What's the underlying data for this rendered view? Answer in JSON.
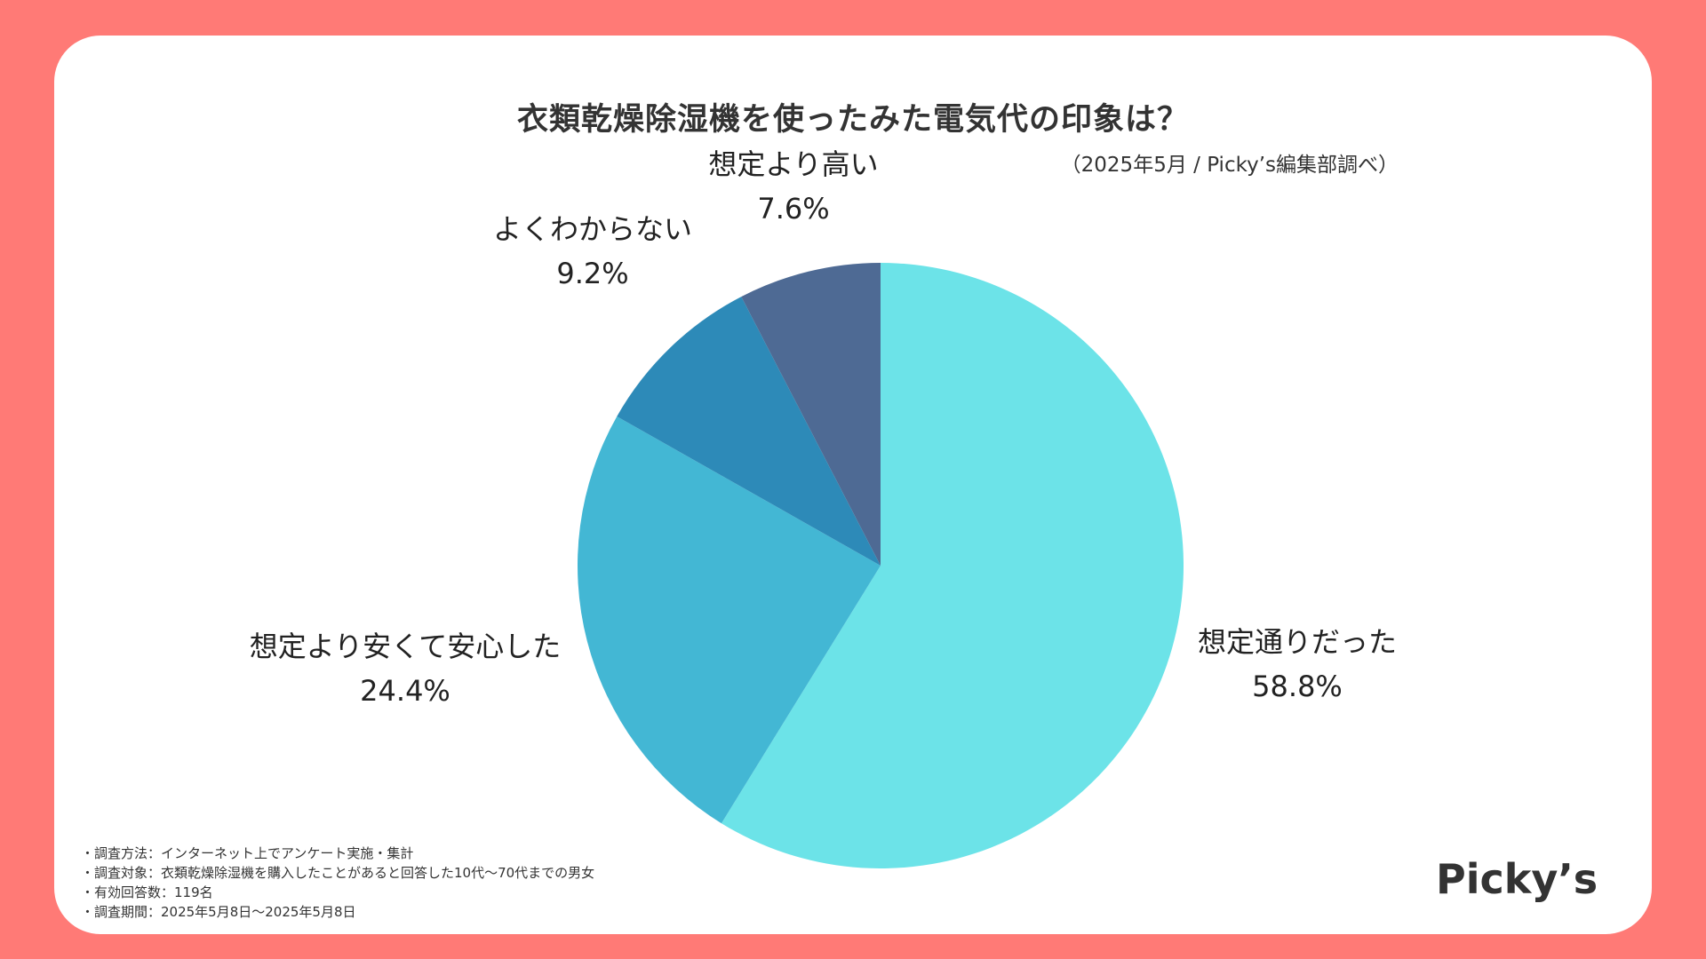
{
  "colors": {
    "frame": "#ff7a76",
    "card": "#ffffff",
    "text": "#222222"
  },
  "header": {
    "title": "衣類乾燥除湿機を使ったみた電気代の印象は？",
    "source": "（2025年5月 / Picky’s編集部調べ）"
  },
  "chart_data": {
    "type": "pie",
    "title": "衣類乾燥除湿機を使ったみた電気代の印象は？",
    "start": "12 o'clock, clockwise",
    "slices": [
      {
        "label": "想定通りだった",
        "value": 58.8,
        "value_label": "58.8%",
        "color": "#6ce3e8"
      },
      {
        "label": "想定より安くて安心した",
        "value": 24.4,
        "value_label": "24.4%",
        "color": "#43b7d4"
      },
      {
        "label": "よくわからない",
        "value": 9.2,
        "value_label": "9.2%",
        "color": "#2d8ab8"
      },
      {
        "label": "想定より高い",
        "value": 7.6,
        "value_label": "7.6%",
        "color": "#4e6a94"
      }
    ]
  },
  "notes": [
    "・調査方法：インターネット上でアンケート実施・集計",
    "・調査対象：衣類乾燥除湿機を購入したことがあると回答した10代〜70代までの男女",
    "・有効回答数：119名",
    "・調査期間：2025年5月8日〜2025年5月8日"
  ],
  "logo": "Picky’s"
}
